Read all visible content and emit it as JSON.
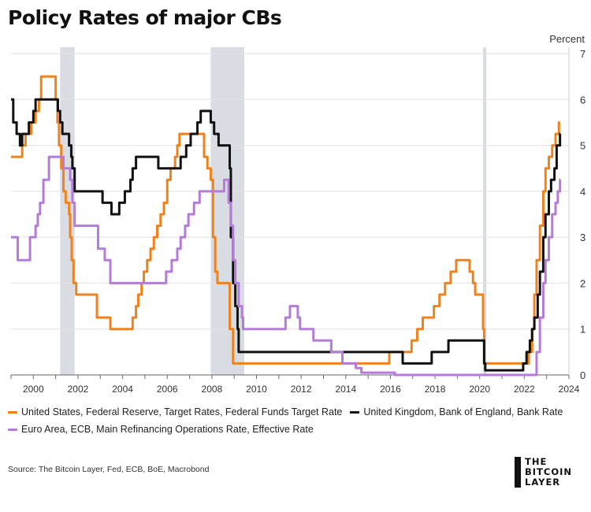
{
  "title": "Policy Rates of major CBs",
  "source": "Source: The Bitcoin Layer, Fed, ECB, BoE, Macrobond",
  "logo": {
    "lines": [
      "THE",
      "BITCOIN",
      "LAYER"
    ]
  },
  "chart_data": {
    "type": "line",
    "title": "Policy Rates of major CBs",
    "ylabel": "Percent",
    "xlim": [
      1999,
      2024
    ],
    "ylim": [
      0,
      7
    ],
    "x_ticks": [
      2000,
      2002,
      2004,
      2006,
      2008,
      2010,
      2012,
      2014,
      2016,
      2018,
      2020,
      2022,
      2024
    ],
    "y_ticks": [
      0,
      1,
      2,
      3,
      4,
      5,
      6,
      7
    ],
    "y_axis_position": "right",
    "grid": "horizontal",
    "legend_position": "bottom",
    "shaded_periods": [
      [
        2001.2,
        2001.85
      ],
      [
        2007.95,
        2009.45
      ],
      [
        2020.15,
        2020.3
      ]
    ],
    "series": [
      {
        "name": "United States, Federal Reserve, Target Rates, Federal Funds Target Rate",
        "color": "#f0821e",
        "step": true,
        "points": [
          [
            1999.0,
            4.75
          ],
          [
            1999.45,
            4.75
          ],
          [
            1999.5,
            5.0
          ],
          [
            1999.65,
            5.25
          ],
          [
            1999.9,
            5.5
          ],
          [
            2000.1,
            5.75
          ],
          [
            2000.25,
            6.0
          ],
          [
            2000.35,
            6.5
          ],
          [
            2000.95,
            6.5
          ],
          [
            2001.0,
            6.0
          ],
          [
            2001.08,
            5.5
          ],
          [
            2001.15,
            5.0
          ],
          [
            2001.25,
            4.5
          ],
          [
            2001.35,
            4.0
          ],
          [
            2001.45,
            3.75
          ],
          [
            2001.6,
            3.5
          ],
          [
            2001.65,
            3.0
          ],
          [
            2001.72,
            2.5
          ],
          [
            2001.8,
            2.0
          ],
          [
            2001.92,
            1.75
          ],
          [
            2002.85,
            1.25
          ],
          [
            2003.45,
            1.0
          ],
          [
            2004.45,
            1.25
          ],
          [
            2004.6,
            1.5
          ],
          [
            2004.7,
            1.75
          ],
          [
            2004.85,
            2.0
          ],
          [
            2004.95,
            2.25
          ],
          [
            2005.1,
            2.5
          ],
          [
            2005.25,
            2.75
          ],
          [
            2005.4,
            3.0
          ],
          [
            2005.55,
            3.25
          ],
          [
            2005.7,
            3.5
          ],
          [
            2005.85,
            3.75
          ],
          [
            2006.0,
            4.25
          ],
          [
            2006.15,
            4.5
          ],
          [
            2006.35,
            4.75
          ],
          [
            2006.45,
            5.0
          ],
          [
            2006.55,
            5.25
          ],
          [
            2007.65,
            4.75
          ],
          [
            2007.8,
            4.5
          ],
          [
            2007.95,
            4.25
          ],
          [
            2008.05,
            3.0
          ],
          [
            2008.15,
            2.25
          ],
          [
            2008.25,
            2.0
          ],
          [
            2008.8,
            1.0
          ],
          [
            2008.95,
            0.25
          ],
          [
            2015.95,
            0.5
          ],
          [
            2016.95,
            0.75
          ],
          [
            2017.2,
            1.0
          ],
          [
            2017.45,
            1.25
          ],
          [
            2017.95,
            1.5
          ],
          [
            2018.2,
            1.75
          ],
          [
            2018.45,
            2.0
          ],
          [
            2018.7,
            2.25
          ],
          [
            2018.95,
            2.5
          ],
          [
            2019.55,
            2.25
          ],
          [
            2019.7,
            2.0
          ],
          [
            2019.8,
            1.75
          ],
          [
            2020.15,
            1.0
          ],
          [
            2020.2,
            0.25
          ],
          [
            2022.2,
            0.5
          ],
          [
            2022.35,
            1.0
          ],
          [
            2022.45,
            1.75
          ],
          [
            2022.55,
            2.5
          ],
          [
            2022.7,
            3.25
          ],
          [
            2022.85,
            4.0
          ],
          [
            2022.95,
            4.5
          ],
          [
            2023.1,
            4.75
          ],
          [
            2023.25,
            5.0
          ],
          [
            2023.4,
            5.25
          ],
          [
            2023.55,
            5.5
          ],
          [
            2023.6,
            5.5
          ]
        ]
      },
      {
        "name": "United Kingdom, Bank of England, Bank Rate",
        "color": "#111111",
        "step": true,
        "points": [
          [
            1999.0,
            6.0
          ],
          [
            1999.1,
            5.5
          ],
          [
            1999.25,
            5.25
          ],
          [
            1999.4,
            5.0
          ],
          [
            1999.5,
            5.25
          ],
          [
            1999.8,
            5.5
          ],
          [
            2000.0,
            5.75
          ],
          [
            2000.1,
            6.0
          ],
          [
            2001.1,
            5.75
          ],
          [
            2001.2,
            5.5
          ],
          [
            2001.3,
            5.25
          ],
          [
            2001.6,
            5.0
          ],
          [
            2001.7,
            4.75
          ],
          [
            2001.75,
            4.5
          ],
          [
            2001.85,
            4.0
          ],
          [
            2003.1,
            3.75
          ],
          [
            2003.5,
            3.5
          ],
          [
            2003.85,
            3.75
          ],
          [
            2004.1,
            4.0
          ],
          [
            2004.35,
            4.25
          ],
          [
            2004.45,
            4.5
          ],
          [
            2004.6,
            4.75
          ],
          [
            2005.6,
            4.5
          ],
          [
            2006.6,
            4.75
          ],
          [
            2006.85,
            5.0
          ],
          [
            2007.05,
            5.25
          ],
          [
            2007.35,
            5.5
          ],
          [
            2007.5,
            5.75
          ],
          [
            2007.95,
            5.5
          ],
          [
            2008.1,
            5.25
          ],
          [
            2008.3,
            5.0
          ],
          [
            2008.8,
            4.5
          ],
          [
            2008.85,
            3.0
          ],
          [
            2008.95,
            2.0
          ],
          [
            2009.05,
            1.5
          ],
          [
            2009.15,
            1.0
          ],
          [
            2009.2,
            0.5
          ],
          [
            2016.55,
            0.25
          ],
          [
            2017.85,
            0.5
          ],
          [
            2018.6,
            0.75
          ],
          [
            2020.2,
            0.25
          ],
          [
            2020.25,
            0.1
          ],
          [
            2021.95,
            0.25
          ],
          [
            2022.1,
            0.5
          ],
          [
            2022.25,
            0.75
          ],
          [
            2022.35,
            1.0
          ],
          [
            2022.45,
            1.25
          ],
          [
            2022.6,
            1.75
          ],
          [
            2022.7,
            2.25
          ],
          [
            2022.85,
            3.0
          ],
          [
            2022.95,
            3.5
          ],
          [
            2023.1,
            4.0
          ],
          [
            2023.2,
            4.25
          ],
          [
            2023.35,
            4.5
          ],
          [
            2023.45,
            5.0
          ],
          [
            2023.6,
            5.25
          ],
          [
            2023.62,
            5.25
          ]
        ]
      },
      {
        "name": "Euro Area, ECB, Main Refinancing Operations Rate, Effective Rate",
        "color": "#b57bd9",
        "step": true,
        "points": [
          [
            1999.0,
            3.0
          ],
          [
            1999.3,
            2.5
          ],
          [
            1999.85,
            3.0
          ],
          [
            2000.1,
            3.25
          ],
          [
            2000.2,
            3.5
          ],
          [
            2000.3,
            3.75
          ],
          [
            2000.45,
            4.25
          ],
          [
            2000.7,
            4.75
          ],
          [
            2001.35,
            4.5
          ],
          [
            2001.65,
            4.25
          ],
          [
            2001.75,
            3.75
          ],
          [
            2001.85,
            3.25
          ],
          [
            2002.9,
            2.75
          ],
          [
            2003.2,
            2.5
          ],
          [
            2003.45,
            2.0
          ],
          [
            2005.95,
            2.25
          ],
          [
            2006.2,
            2.5
          ],
          [
            2006.45,
            2.75
          ],
          [
            2006.6,
            3.0
          ],
          [
            2006.8,
            3.25
          ],
          [
            2006.95,
            3.5
          ],
          [
            2007.2,
            3.75
          ],
          [
            2007.45,
            4.0
          ],
          [
            2008.55,
            4.25
          ],
          [
            2008.75,
            3.75
          ],
          [
            2008.85,
            3.25
          ],
          [
            2008.95,
            2.5
          ],
          [
            2009.05,
            2.0
          ],
          [
            2009.2,
            1.5
          ],
          [
            2009.35,
            1.25
          ],
          [
            2009.4,
            1.0
          ],
          [
            2011.3,
            1.25
          ],
          [
            2011.5,
            1.5
          ],
          [
            2011.85,
            1.25
          ],
          [
            2011.95,
            1.0
          ],
          [
            2012.55,
            0.75
          ],
          [
            2013.35,
            0.5
          ],
          [
            2013.85,
            0.25
          ],
          [
            2014.45,
            0.15
          ],
          [
            2014.7,
            0.05
          ],
          [
            2016.2,
            0.0
          ],
          [
            2022.55,
            0.5
          ],
          [
            2022.7,
            1.25
          ],
          [
            2022.85,
            2.0
          ],
          [
            2022.95,
            2.5
          ],
          [
            2023.1,
            3.0
          ],
          [
            2023.25,
            3.5
          ],
          [
            2023.4,
            3.75
          ],
          [
            2023.5,
            4.0
          ],
          [
            2023.6,
            4.25
          ],
          [
            2023.62,
            4.25
          ]
        ]
      }
    ]
  }
}
